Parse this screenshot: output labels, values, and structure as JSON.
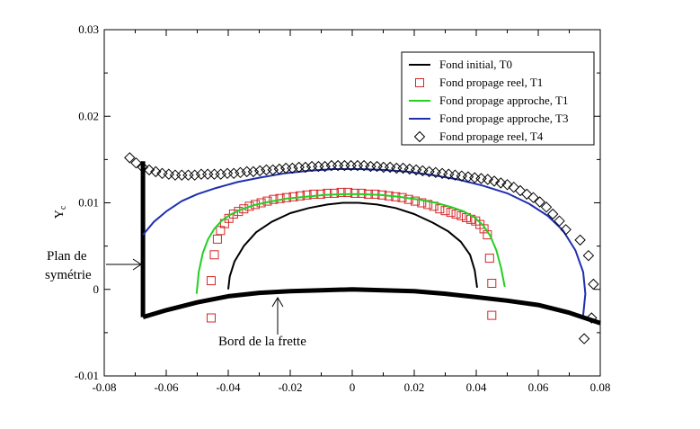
{
  "chart_data": {
    "type": "scatter",
    "title": "",
    "xlabel": "",
    "ylabel": "Y",
    "ylabel_subscript": "c",
    "xlim": [
      -0.08,
      0.08
    ],
    "ylim": [
      -0.01,
      0.03
    ],
    "xticks": [
      -0.08,
      -0.06,
      -0.04,
      -0.02,
      0,
      0.02,
      0.04,
      0.06,
      0.08
    ],
    "xtick_labels": [
      "-0.08",
      "-0.06",
      "-0.04",
      "-0.02",
      "0",
      "0.02",
      "0.04",
      "0.06",
      "0.08"
    ],
    "yticks": [
      -0.01,
      0,
      0.01,
      0.02,
      0.03
    ],
    "ytick_labels": [
      "-0.01",
      "0",
      "0.01",
      "0.02",
      "0.03"
    ],
    "grid": false,
    "legend_position": "top-right",
    "series": [
      {
        "name": "Fond initial, T0",
        "mark": "line",
        "color": "#000000",
        "points": [
          [
            -0.04,
            0.0
          ],
          [
            -0.0395,
            0.0015
          ],
          [
            -0.038,
            0.0032
          ],
          [
            -0.035,
            0.005
          ],
          [
            -0.031,
            0.0066
          ],
          [
            -0.026,
            0.0078
          ],
          [
            -0.02,
            0.0088
          ],
          [
            -0.014,
            0.0094
          ],
          [
            -0.008,
            0.0098
          ],
          [
            -0.003,
            0.01
          ],
          [
            0.002,
            0.01
          ],
          [
            0.008,
            0.0098
          ],
          [
            0.014,
            0.0094
          ],
          [
            0.02,
            0.0087
          ],
          [
            0.026,
            0.0077
          ],
          [
            0.031,
            0.0067
          ],
          [
            0.035,
            0.0055
          ],
          [
            0.038,
            0.004
          ],
          [
            0.0395,
            0.0022
          ],
          [
            0.0403,
            0.0002
          ]
        ]
      },
      {
        "name": "Fond propage reel, T1",
        "mark": "square",
        "color": "#d62728",
        "points": [
          [
            -0.0455,
            -0.0033
          ],
          [
            -0.0455,
            0.001
          ],
          [
            -0.0445,
            0.004
          ],
          [
            -0.0435,
            0.0058
          ],
          [
            -0.0425,
            0.0068
          ],
          [
            -0.0412,
            0.0076
          ],
          [
            -0.0398,
            0.0082
          ],
          [
            -0.0383,
            0.0087
          ],
          [
            -0.0367,
            0.009
          ],
          [
            -0.035,
            0.0093
          ],
          [
            -0.0332,
            0.0096
          ],
          [
            -0.0313,
            0.0098
          ],
          [
            -0.0294,
            0.01
          ],
          [
            -0.0274,
            0.0102
          ],
          [
            -0.0254,
            0.0104
          ],
          [
            -0.0233,
            0.0105
          ],
          [
            -0.0212,
            0.0106
          ],
          [
            -0.019,
            0.0107
          ],
          [
            -0.0168,
            0.0108
          ],
          [
            -0.0146,
            0.0109
          ],
          [
            -0.0124,
            0.011
          ],
          [
            -0.0102,
            0.011
          ],
          [
            -0.008,
            0.0111
          ],
          [
            -0.0058,
            0.0111
          ],
          [
            -0.0036,
            0.0112
          ],
          [
            -0.0014,
            0.0112
          ],
          [
            0.0008,
            0.0111
          ],
          [
            0.003,
            0.0111
          ],
          [
            0.0052,
            0.011
          ],
          [
            0.0074,
            0.011
          ],
          [
            0.0096,
            0.0109
          ],
          [
            0.0118,
            0.0108
          ],
          [
            0.014,
            0.0107
          ],
          [
            0.0161,
            0.0106
          ],
          [
            0.0182,
            0.0104
          ],
          [
            0.0203,
            0.0102
          ],
          [
            0.0224,
            0.01
          ],
          [
            0.0244,
            0.0098
          ],
          [
            0.0263,
            0.0096
          ],
          [
            0.0282,
            0.0093
          ],
          [
            0.03,
            0.0091
          ],
          [
            0.0318,
            0.0089
          ],
          [
            0.0335,
            0.0087
          ],
          [
            0.0352,
            0.0085
          ],
          [
            0.0368,
            0.0083
          ],
          [
            0.0383,
            0.0081
          ],
          [
            0.0398,
            0.0079
          ],
          [
            0.0412,
            0.0075
          ],
          [
            0.0425,
            0.007
          ],
          [
            0.0436,
            0.0063
          ],
          [
            0.0443,
            0.0036
          ],
          [
            0.045,
            0.0007
          ],
          [
            0.045,
            -0.003
          ]
        ]
      },
      {
        "name": "Fond propage approche, T1",
        "mark": "line",
        "color": "#22d022",
        "points": [
          [
            -0.0502,
            -0.0005
          ],
          [
            -0.0495,
            0.002
          ],
          [
            -0.0482,
            0.0042
          ],
          [
            -0.0465,
            0.0058
          ],
          [
            -0.0445,
            0.007
          ],
          [
            -0.0422,
            0.0079
          ],
          [
            -0.0395,
            0.0086
          ],
          [
            -0.036,
            0.0092
          ],
          [
            -0.032,
            0.0097
          ],
          [
            -0.027,
            0.0101
          ],
          [
            -0.021,
            0.0105
          ],
          [
            -0.015,
            0.0107
          ],
          [
            -0.009,
            0.0109
          ],
          [
            -0.003,
            0.011
          ],
          [
            0.003,
            0.011
          ],
          [
            0.009,
            0.0109
          ],
          [
            0.015,
            0.0107
          ],
          [
            0.021,
            0.0104
          ],
          [
            0.027,
            0.01
          ],
          [
            0.032,
            0.0095
          ],
          [
            0.036,
            0.009
          ],
          [
            0.0395,
            0.0083
          ],
          [
            0.0422,
            0.0074
          ],
          [
            0.0445,
            0.0062
          ],
          [
            0.0465,
            0.0045
          ],
          [
            0.048,
            0.0025
          ],
          [
            0.0492,
            0.0003
          ]
        ]
      },
      {
        "name": "Fond propage approche, T3",
        "mark": "line",
        "color": "#1f2fb0",
        "points": [
          [
            -0.0675,
            0.0063
          ],
          [
            -0.064,
            0.0078
          ],
          [
            -0.06,
            0.009
          ],
          [
            -0.055,
            0.0102
          ],
          [
            -0.05,
            0.011
          ],
          [
            -0.044,
            0.0117
          ],
          [
            -0.037,
            0.0124
          ],
          [
            -0.03,
            0.0129
          ],
          [
            -0.022,
            0.0134
          ],
          [
            -0.014,
            0.0137
          ],
          [
            -0.006,
            0.0139
          ],
          [
            0.002,
            0.0139
          ],
          [
            0.01,
            0.0138
          ],
          [
            0.018,
            0.0136
          ],
          [
            0.026,
            0.0132
          ],
          [
            0.034,
            0.0127
          ],
          [
            0.042,
            0.012
          ],
          [
            0.05,
            0.0111
          ],
          [
            0.057,
            0.0099
          ],
          [
            0.063,
            0.0085
          ],
          [
            0.068,
            0.0068
          ],
          [
            0.072,
            0.0045
          ],
          [
            0.0745,
            0.002
          ],
          [
            0.0752,
            -0.0005
          ],
          [
            0.0745,
            -0.003
          ]
        ]
      },
      {
        "name": "Fond propage reel, T4",
        "mark": "diamond",
        "color": "#000000",
        "points": [
          [
            -0.0718,
            0.0152
          ],
          [
            -0.0697,
            0.0146
          ],
          [
            -0.0676,
            0.0141
          ],
          [
            -0.0655,
            0.0138
          ],
          [
            -0.0634,
            0.0136
          ],
          [
            -0.0613,
            0.0134
          ],
          [
            -0.0592,
            0.0133
          ],
          [
            -0.0571,
            0.0132
          ],
          [
            -0.055,
            0.0132
          ],
          [
            -0.0529,
            0.0132
          ],
          [
            -0.0508,
            0.0132
          ],
          [
            -0.0487,
            0.0133
          ],
          [
            -0.0466,
            0.0133
          ],
          [
            -0.0445,
            0.0133
          ],
          [
            -0.0424,
            0.0133
          ],
          [
            -0.0403,
            0.0134
          ],
          [
            -0.0382,
            0.0134
          ],
          [
            -0.0361,
            0.0135
          ],
          [
            -0.034,
            0.0136
          ],
          [
            -0.0319,
            0.0136
          ],
          [
            -0.0298,
            0.0137
          ],
          [
            -0.0277,
            0.0138
          ],
          [
            -0.0256,
            0.0138
          ],
          [
            -0.0235,
            0.0139
          ],
          [
            -0.0214,
            0.014
          ],
          [
            -0.0193,
            0.014
          ],
          [
            -0.0172,
            0.0141
          ],
          [
            -0.0151,
            0.0141
          ],
          [
            -0.013,
            0.0142
          ],
          [
            -0.0109,
            0.0142
          ],
          [
            -0.0088,
            0.0142
          ],
          [
            -0.0067,
            0.0143
          ],
          [
            -0.0046,
            0.0143
          ],
          [
            -0.0025,
            0.0143
          ],
          [
            -0.0004,
            0.0143
          ],
          [
            0.0017,
            0.0143
          ],
          [
            0.0038,
            0.0143
          ],
          [
            0.0059,
            0.0142
          ],
          [
            0.008,
            0.0142
          ],
          [
            0.0101,
            0.0141
          ],
          [
            0.0122,
            0.0141
          ],
          [
            0.0143,
            0.014
          ],
          [
            0.0164,
            0.014
          ],
          [
            0.0185,
            0.0139
          ],
          [
            0.0206,
            0.0138
          ],
          [
            0.0227,
            0.0137
          ],
          [
            0.0248,
            0.0136
          ],
          [
            0.0269,
            0.0135
          ],
          [
            0.029,
            0.0134
          ],
          [
            0.0311,
            0.0133
          ],
          [
            0.0332,
            0.0132
          ],
          [
            0.0353,
            0.0131
          ],
          [
            0.0374,
            0.013
          ],
          [
            0.0395,
            0.0129
          ],
          [
            0.0416,
            0.0128
          ],
          [
            0.0437,
            0.0127
          ],
          [
            0.0458,
            0.0125
          ],
          [
            0.0479,
            0.0123
          ],
          [
            0.05,
            0.0121
          ],
          [
            0.0521,
            0.0118
          ],
          [
            0.0542,
            0.0114
          ],
          [
            0.0563,
            0.011
          ],
          [
            0.0584,
            0.0106
          ],
          [
            0.0605,
            0.0101
          ],
          [
            0.0626,
            0.0095
          ],
          [
            0.0647,
            0.0087
          ],
          [
            0.0668,
            0.0079
          ],
          [
            0.0689,
            0.0069
          ],
          [
            0.0735,
            0.0057
          ],
          [
            0.0762,
            0.0039
          ],
          [
            0.0778,
            0.0006
          ],
          [
            0.0772,
            -0.0033
          ],
          [
            0.0748,
            -0.0057
          ]
        ]
      }
    ],
    "structure_lines": [
      {
        "name": "symmetry-plane",
        "points": [
          [
            -0.0675,
            -0.0032
          ],
          [
            -0.0675,
            0.0148
          ]
        ]
      },
      {
        "name": "frette-edge",
        "points": [
          [
            -0.0675,
            -0.0032
          ],
          [
            -0.06,
            -0.0024
          ],
          [
            -0.05,
            -0.0015
          ],
          [
            -0.04,
            -0.0008
          ],
          [
            -0.03,
            -0.0004
          ],
          [
            -0.02,
            -0.0002
          ],
          [
            -0.01,
            -0.0001
          ],
          [
            0.0,
            0.0
          ],
          [
            0.01,
            -0.0001
          ],
          [
            0.02,
            -0.0002
          ],
          [
            0.03,
            -0.0005
          ],
          [
            0.04,
            -0.0009
          ],
          [
            0.05,
            -0.0013
          ],
          [
            0.06,
            -0.0018
          ],
          [
            0.07,
            -0.0027
          ],
          [
            0.08,
            -0.0039
          ]
        ]
      }
    ],
    "annotations": [
      {
        "name": "plan-symetrie-line1",
        "text": "Plan de"
      },
      {
        "name": "plan-symetrie-line2",
        "text": "symétrie"
      },
      {
        "name": "bord-frette",
        "text": "Bord de la frette"
      }
    ]
  }
}
